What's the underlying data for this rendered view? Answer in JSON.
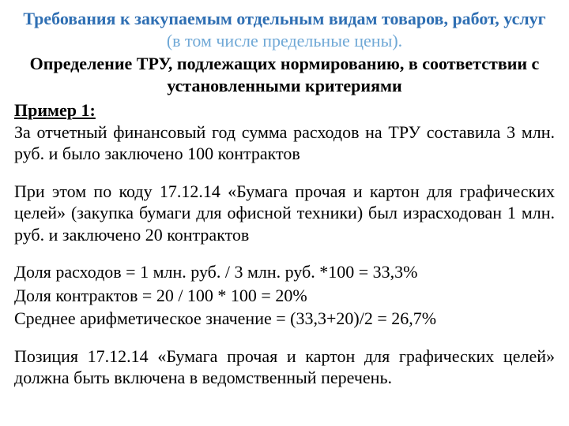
{
  "colors": {
    "background": "#ffffff",
    "text": "#000000",
    "title_blue": "#2f6fb3",
    "title_blue_light": "#6fa8d6"
  },
  "typography": {
    "font_family": "Times New Roman",
    "base_font_size_pt": 16,
    "line_height": 1.25
  },
  "title": {
    "main": "Требования к закупаемым отдельным видам товаров, работ, услуг",
    "paren": " (в том числе предельные цены)."
  },
  "subtitle": "Определение ТРУ, подлежащих нормированию, в соответствии с установленными критериями",
  "example_label": "Пример 1:",
  "paragraphs": {
    "p1": "За отчетный финансовый год сумма расходов на ТРУ составила 3 млн. руб. и было заключено 100 контрактов",
    "p2": "При этом по коду 17.12.14 «Бумага прочая и картон для графических целей» (закупка бумаги для офисной техники) был израсходован 1 млн. руб. и заключено 20 контрактов",
    "p3": "Доля расходов = 1 млн. руб. / 3 млн. руб. *100 = 33,3%",
    "p4": "Доля контрактов = 20 / 100 * 100 = 20%",
    "p5": "Среднее арифметическое значение = (33,3+20)/2 = 26,7%",
    "p6": "Позиция 17.12.14 «Бумага прочая и картон для графических целей» должна быть включена в ведомственный перечень."
  }
}
